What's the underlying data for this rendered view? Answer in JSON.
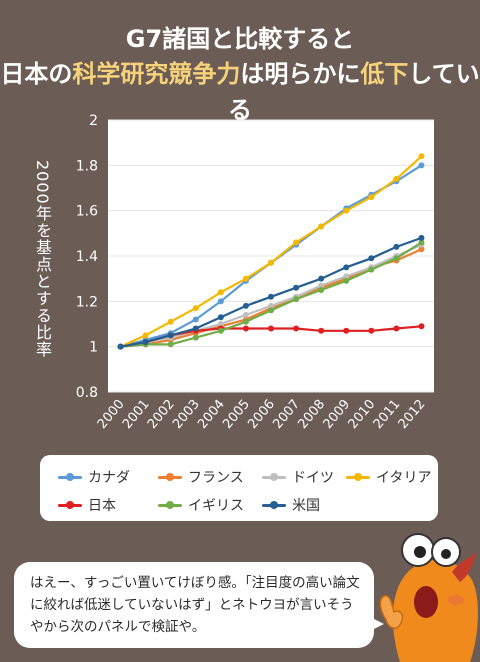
{
  "title": {
    "line1": "G7諸国と比較すると",
    "line2_pre": "日本の",
    "line2_highlight": "科学研究競争力",
    "line2_post": "は明らかに",
    "line2_highlight2": "低下",
    "line2_end": "している"
  },
  "chart_data": {
    "type": "line",
    "title": "",
    "xlabel": "",
    "ylabel": "2000年を基点とする比率",
    "x": [
      "2000",
      "2001",
      "2002",
      "2003",
      "2004",
      "2005",
      "2006",
      "2007",
      "2008",
      "2009",
      "2010",
      "2011",
      "2012"
    ],
    "ylim": [
      0.8,
      2
    ],
    "yticks": [
      "0.8",
      "1",
      "1.2",
      "1.4",
      "1.6",
      "1.8",
      "2"
    ],
    "series": [
      {
        "name": "カナダ",
        "color": "#5b9bd5",
        "values": [
          1.0,
          1.03,
          1.06,
          1.12,
          1.2,
          1.29,
          1.37,
          1.45,
          1.53,
          1.61,
          1.67,
          1.73,
          1.8
        ]
      },
      {
        "name": "フランス",
        "color": "#ed7d31",
        "values": [
          1.0,
          1.01,
          1.03,
          1.06,
          1.09,
          1.12,
          1.17,
          1.21,
          1.26,
          1.3,
          1.35,
          1.38,
          1.43
        ]
      },
      {
        "name": "ドイツ",
        "color": "#bfbfbf",
        "values": [
          1.0,
          1.02,
          1.04,
          1.07,
          1.1,
          1.14,
          1.18,
          1.22,
          1.27,
          1.31,
          1.35,
          1.4,
          1.45
        ]
      },
      {
        "name": "イタリア",
        "color": "#f5b800",
        "values": [
          1.0,
          1.05,
          1.11,
          1.17,
          1.24,
          1.3,
          1.37,
          1.46,
          1.53,
          1.6,
          1.66,
          1.74,
          1.84
        ]
      },
      {
        "name": "日本",
        "color": "#e02020",
        "values": [
          1.0,
          1.02,
          1.05,
          1.07,
          1.08,
          1.08,
          1.08,
          1.08,
          1.07,
          1.07,
          1.07,
          1.08,
          1.09
        ]
      },
      {
        "name": "イギリス",
        "color": "#70ad47",
        "values": [
          1.0,
          1.01,
          1.01,
          1.04,
          1.07,
          1.11,
          1.16,
          1.21,
          1.25,
          1.29,
          1.34,
          1.39,
          1.46
        ]
      },
      {
        "name": "米国",
        "color": "#255e91",
        "values": [
          1.0,
          1.02,
          1.05,
          1.08,
          1.13,
          1.18,
          1.22,
          1.26,
          1.3,
          1.35,
          1.39,
          1.44,
          1.48
        ]
      }
    ]
  },
  "bubble": {
    "text": "はえー、すっごい置いてけぼり感。「注目度の高い論文に絞れば低迷していないはず」とネトウヨが言いそうやから次のパネルで検証や。"
  }
}
